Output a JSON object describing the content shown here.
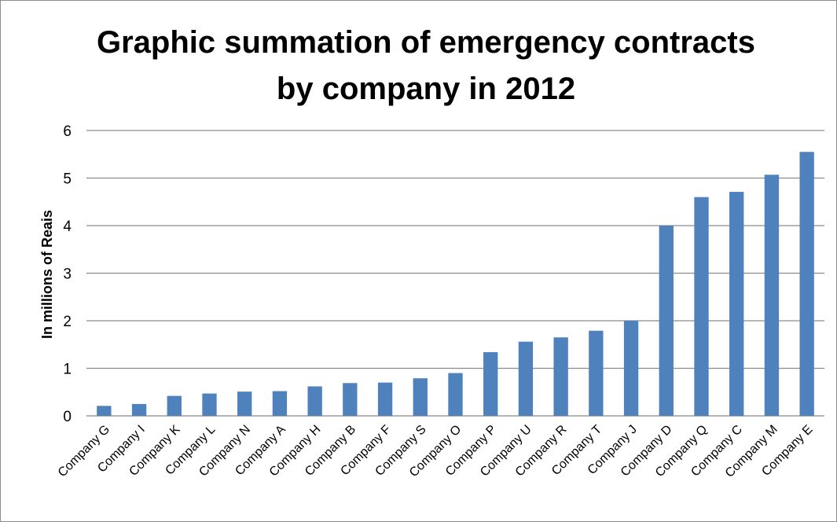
{
  "chart_data": {
    "type": "bar",
    "title_lines": [
      "Graphic summation of emergency contracts",
      "by company in 2012"
    ],
    "xlabel": "",
    "ylabel": "In millions of  Reais",
    "ylim": [
      0,
      6
    ],
    "yticks": [
      "0",
      "1",
      "2",
      "3",
      "4",
      "5",
      "6"
    ],
    "grid": true,
    "legend": "none",
    "bar_color": "#4f81bd",
    "categories": [
      "Company G",
      "Company I",
      "Company K",
      "Company L",
      "Company N",
      "Company A",
      "Company H",
      "Company B",
      "Company F",
      "Company S",
      "Company O",
      "Company P",
      "Company U",
      "Company R",
      "Company T",
      "Company J",
      "Company D",
      "Company Q",
      "Company C",
      "Company M",
      "Company E"
    ],
    "values": [
      0.21,
      0.25,
      0.42,
      0.47,
      0.51,
      0.52,
      0.62,
      0.69,
      0.7,
      0.79,
      0.9,
      1.34,
      1.56,
      1.65,
      1.79,
      2.0,
      4.0,
      4.6,
      4.71,
      5.07,
      5.55
    ]
  }
}
